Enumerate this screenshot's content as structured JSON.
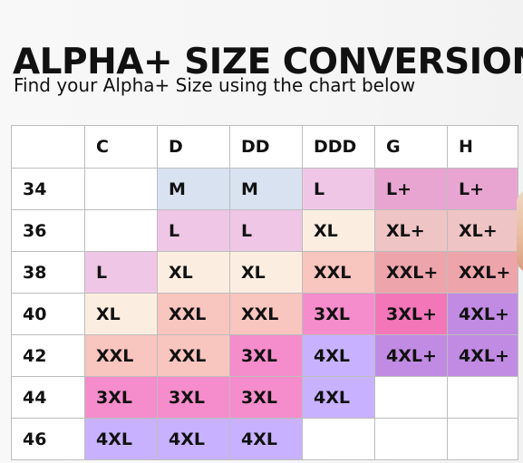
{
  "page": {
    "title": "ALPHA+ SIZE CONVERSION",
    "subtitle": "Find your Alpha+ Size using the chart below"
  },
  "chart": {
    "corner": "",
    "cups": [
      "C",
      "D",
      "DD",
      "DDD",
      "G",
      "H"
    ],
    "rows": [
      {
        "band": "34",
        "cells": [
          {
            "text": "",
            "color": "#ffffff"
          },
          {
            "text": "M",
            "color": "#d8e2f1"
          },
          {
            "text": "M",
            "color": "#d8e2f1"
          },
          {
            "text": "L",
            "color": "#efc6e6"
          },
          {
            "text": "L+",
            "color": "#e9a5d2"
          },
          {
            "text": "L+",
            "color": "#e9a5d2"
          }
        ]
      },
      {
        "band": "36",
        "cells": [
          {
            "text": "",
            "color": "#ffffff"
          },
          {
            "text": "L",
            "color": "#efc6e6"
          },
          {
            "text": "L",
            "color": "#efc6e6"
          },
          {
            "text": "XL",
            "color": "#fbeee1"
          },
          {
            "text": "XL+",
            "color": "#efc4c4"
          },
          {
            "text": "XL+",
            "color": "#efc4c4"
          }
        ]
      },
      {
        "band": "38",
        "cells": [
          {
            "text": "L",
            "color": "#efc6e6"
          },
          {
            "text": "XL",
            "color": "#fbeee1"
          },
          {
            "text": "XL",
            "color": "#fbeee1"
          },
          {
            "text": "XXL",
            "color": "#f8c5bf"
          },
          {
            "text": "XXL+",
            "color": "#eea4ab"
          },
          {
            "text": "XXL+",
            "color": "#eea4ab"
          }
        ]
      },
      {
        "band": "40",
        "cells": [
          {
            "text": "XL",
            "color": "#fbeee1"
          },
          {
            "text": "XXL",
            "color": "#f8c5bf"
          },
          {
            "text": "XXL",
            "color": "#f8c5bf"
          },
          {
            "text": "3XL",
            "color": "#f58ccb"
          },
          {
            "text": "3XL+",
            "color": "#f276b8"
          },
          {
            "text": "4XL+",
            "color": "#c18be3"
          }
        ]
      },
      {
        "band": "42",
        "cells": [
          {
            "text": "XXL",
            "color": "#f8c5bf"
          },
          {
            "text": "XXL",
            "color": "#f8c5bf"
          },
          {
            "text": "3XL",
            "color": "#f58ccb"
          },
          {
            "text": "4XL",
            "color": "#c8b2ff"
          },
          {
            "text": "4XL+",
            "color": "#c18be3"
          },
          {
            "text": "4XL+",
            "color": "#c18be3"
          }
        ]
      },
      {
        "band": "44",
        "cells": [
          {
            "text": "3XL",
            "color": "#f58ccb"
          },
          {
            "text": "3XL",
            "color": "#f58ccb"
          },
          {
            "text": "3XL",
            "color": "#f58ccb"
          },
          {
            "text": "4XL",
            "color": "#c8b2ff"
          },
          {
            "text": "",
            "color": "#ffffff"
          },
          {
            "text": "",
            "color": "#ffffff"
          }
        ]
      },
      {
        "band": "46",
        "cells": [
          {
            "text": "4XL",
            "color": "#c8b2ff"
          },
          {
            "text": "4XL",
            "color": "#c8b2ff"
          },
          {
            "text": "4XL",
            "color": "#c8b2ff"
          },
          {
            "text": "",
            "color": "#ffffff"
          },
          {
            "text": "",
            "color": "#ffffff"
          },
          {
            "text": "",
            "color": "#ffffff"
          }
        ]
      }
    ]
  }
}
